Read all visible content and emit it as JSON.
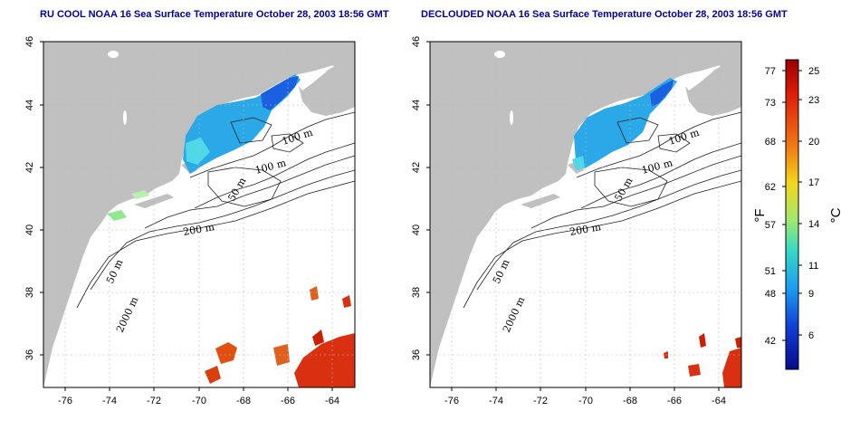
{
  "titles": {
    "left": "RU COOL NOAA 16 Sea Surface Temperature October 28, 2003 18:56 GMT",
    "right": "DECLOUDED NOAA 16 Sea Surface Temperature October 28, 2003 18:56 GMT"
  },
  "axes": {
    "lat_ticks": [
      "46",
      "44",
      "42",
      "40",
      "38",
      "36"
    ],
    "lon_ticks": [
      "-76",
      "-74",
      "-72",
      "-70",
      "-68",
      "-66",
      "-64"
    ],
    "lat_range": [
      35,
      46
    ],
    "lon_range": [
      -77,
      -63
    ]
  },
  "contour_labels": {
    "m100a": "100 m",
    "m100b": "100 m",
    "m50a": "50 m",
    "m200": "200 m",
    "m50b": "50 m",
    "m2000": "2000 m"
  },
  "colorbar": {
    "f_label": "°F",
    "c_label": "°C",
    "f_ticks": [
      "77",
      "73",
      "68",
      "62",
      "57",
      "51",
      "48",
      "42"
    ],
    "c_ticks": [
      "25",
      "23",
      "20",
      "17",
      "14",
      "11",
      "9",
      "6"
    ],
    "colors": [
      "#9b0000",
      "#e0200a",
      "#f07a12",
      "#f2d81c",
      "#9fe870",
      "#33d8c8",
      "#1c9cf0",
      "#1040d8",
      "#0a0a8c"
    ]
  },
  "map_colors": {
    "land": "#c0c0c0",
    "ocean": "#ffffff",
    "cool_water": "#2aa8e8",
    "warm_water": "#d83010"
  }
}
